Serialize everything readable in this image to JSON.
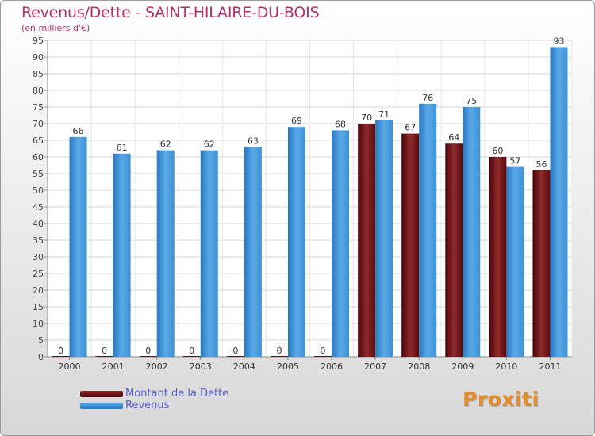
{
  "header": {
    "title": "Revenus/Dette - SAINT-HILAIRE-DU-BOIS",
    "subtitle": "(en milliers d'€)"
  },
  "legend": {
    "items": [
      {
        "label": "Montant de la Dette",
        "color": "#6b0f12"
      },
      {
        "label": "Revenus",
        "color": "#3f8fd6"
      }
    ]
  },
  "logo": {
    "text": "Proxiti"
  },
  "chart_data": {
    "type": "bar",
    "title": "Revenus/Dette - SAINT-HILAIRE-DU-BOIS",
    "subtitle": "(en milliers d'€)",
    "xlabel": "",
    "ylabel": "",
    "categories": [
      "2000",
      "2001",
      "2002",
      "2003",
      "2004",
      "2005",
      "2006",
      "2007",
      "2008",
      "2009",
      "2010",
      "2011"
    ],
    "series": [
      {
        "name": "Montant de la Dette",
        "color": "#6b0f12",
        "values": [
          0,
          0,
          0,
          0,
          0,
          0,
          0,
          70,
          67,
          64,
          60,
          56
        ]
      },
      {
        "name": "Revenus",
        "color": "#3f8fd6",
        "values": [
          66,
          61,
          62,
          62,
          63,
          69,
          68,
          71,
          76,
          75,
          57,
          93
        ]
      }
    ],
    "ylim": [
      0,
      95
    ],
    "ytick_step": 5,
    "grid": true,
    "legend_position": "bottom-left"
  }
}
